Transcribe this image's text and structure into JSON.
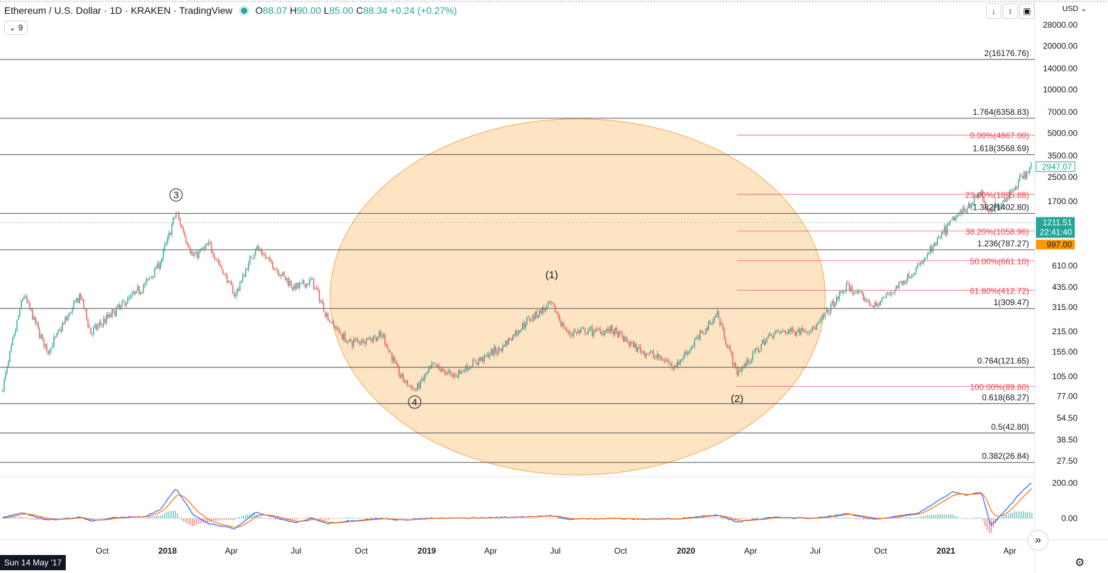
{
  "header": {
    "title": "Ethereum / U.S. Dollar · 1D · KRAKEN · TradingView",
    "o_label": "O",
    "o_value": "88.07",
    "h_label": "H",
    "h_value": "90.00",
    "l_label": "L",
    "l_value": "85.00",
    "c_label": "C",
    "c_value": "88.34",
    "change": "+0.24 (+0.27%)",
    "indicator_chip": "9",
    "currency": "USD"
  },
  "colors": {
    "up": "#26a69a",
    "down": "#ef5350",
    "fib": "#f23645",
    "circle_fill": "#fde4c1",
    "circle_stroke": "#f7a24a",
    "macd_line": "#2962ff",
    "signal_line": "#ff6d00"
  },
  "footer": {
    "date_tag": "Sun 14 May '17",
    "scroll_icon": "double-chevron-right-icon",
    "settings_icon": "gear-icon"
  },
  "chart_data": {
    "type": "candlestick",
    "scale": "log",
    "x_axis_ticks": [
      {
        "date": "2017-10-01",
        "label": "Oct",
        "bold": false
      },
      {
        "date": "2018-01-01",
        "label": "2018",
        "bold": true
      },
      {
        "date": "2018-04-01",
        "label": "Apr",
        "bold": false
      },
      {
        "date": "2018-07-01",
        "label": "Jul",
        "bold": false
      },
      {
        "date": "2018-10-01",
        "label": "Oct",
        "bold": false
      },
      {
        "date": "2019-01-01",
        "label": "2019",
        "bold": true
      },
      {
        "date": "2019-04-01",
        "label": "Apr",
        "bold": false
      },
      {
        "date": "2019-07-01",
        "label": "Jul",
        "bold": false
      },
      {
        "date": "2019-10-01",
        "label": "Oct",
        "bold": false
      },
      {
        "date": "2020-01-01",
        "label": "2020",
        "bold": true
      },
      {
        "date": "2020-04-01",
        "label": "Apr",
        "bold": false
      },
      {
        "date": "2020-07-01",
        "label": "Jul",
        "bold": false
      },
      {
        "date": "2020-10-01",
        "label": "Oct",
        "bold": false
      },
      {
        "date": "2021-01-01",
        "label": "2021",
        "bold": true
      },
      {
        "date": "2021-04-01",
        "label": "Apr",
        "bold": false
      }
    ],
    "y_axis_ticks": [
      "28000.00",
      "20000.00",
      "14000.00",
      "10000.00",
      "7000.00",
      "5000.00",
      "3500.00",
      "2500.00",
      "1700.00",
      "610.00",
      "435.00",
      "315.00",
      "215.00",
      "155.00",
      "105.00",
      "77.00",
      "54.50",
      "38.50",
      "27.50"
    ],
    "price_tags": [
      {
        "label": "2947.07",
        "price": 2947.07,
        "style": "outline"
      },
      {
        "label": "1211.51",
        "sub": "22:41:40",
        "price": 1211.51,
        "style": "current"
      },
      {
        "label": "997.00",
        "price": 997,
        "style": "orange"
      }
    ],
    "price_line": 1211.51,
    "fib_extensions": [
      {
        "label": "2(16176.76)",
        "price": 16176.76
      },
      {
        "label": "1.764(6358.83)",
        "price": 6358.83
      },
      {
        "label": "1.618(3568.69)",
        "price": 3568.69
      },
      {
        "label": "1.382(1402.80)",
        "price": 1402.8
      },
      {
        "label": "1.236(787.27)",
        "price": 787.27
      },
      {
        "label": "1(309.47)",
        "price": 309.47
      },
      {
        "label": "0.764(121.65)",
        "price": 121.65
      },
      {
        "label": "0.618(68.27)",
        "price": 68.27
      },
      {
        "label": "0.5(42.80)",
        "price": 42.8
      },
      {
        "label": "0.382(26.84)",
        "price": 26.84
      }
    ],
    "fib_retracements": {
      "x_start": "2020-03-13",
      "levels": [
        {
          "label": "0.00%(4867.00)",
          "price": 4867.0
        },
        {
          "label": "23.60%(1895.88)",
          "price": 1895.88
        },
        {
          "label": "38.20%(1058.96)",
          "price": 1058.96
        },
        {
          "label": "50.00%(661.10)",
          "price": 661.1
        },
        {
          "label": "61.80%(412.72)",
          "price": 412.72
        },
        {
          "label": "100.00%(89.80)",
          "price": 89.8
        }
      ]
    },
    "wave_labels": [
      {
        "label": "3",
        "circled": true,
        "date": "2018-01-13",
        "price": 1880
      },
      {
        "label": "(1)",
        "circled": false,
        "date": "2019-06-26",
        "price": 530
      },
      {
        "label": "4",
        "circled": true,
        "date": "2018-12-15",
        "price": 70
      },
      {
        "label": "(2)",
        "circled": false,
        "date": "2020-03-13",
        "price": 74
      }
    ],
    "circle_region": {
      "x_start": "2018-08-18",
      "x_end": "2020-07-15",
      "price_top": 6300,
      "price_bottom": 22
    },
    "ohlc_series": [
      {
        "date": "2017-05-14",
        "price": 88
      },
      {
        "date": "2017-06-12",
        "price": 390
      },
      {
        "date": "2017-07-16",
        "price": 155
      },
      {
        "date": "2017-08-31",
        "price": 385
      },
      {
        "date": "2017-09-15",
        "price": 210
      },
      {
        "date": "2017-10-20",
        "price": 300
      },
      {
        "date": "2017-11-30",
        "price": 450
      },
      {
        "date": "2017-12-22",
        "price": 650
      },
      {
        "date": "2018-01-13",
        "price": 1420
      },
      {
        "date": "2018-02-06",
        "price": 700
      },
      {
        "date": "2018-03-01",
        "price": 850
      },
      {
        "date": "2018-04-06",
        "price": 380
      },
      {
        "date": "2018-05-05",
        "price": 820
      },
      {
        "date": "2018-06-29",
        "price": 430
      },
      {
        "date": "2018-07-24",
        "price": 480
      },
      {
        "date": "2018-08-14",
        "price": 270
      },
      {
        "date": "2018-09-12",
        "price": 180
      },
      {
        "date": "2018-10-31",
        "price": 200
      },
      {
        "date": "2018-11-25",
        "price": 105
      },
      {
        "date": "2018-12-15",
        "price": 84
      },
      {
        "date": "2019-01-10",
        "price": 125
      },
      {
        "date": "2019-02-07",
        "price": 106
      },
      {
        "date": "2019-03-15",
        "price": 136
      },
      {
        "date": "2019-04-15",
        "price": 165
      },
      {
        "date": "2019-05-28",
        "price": 270
      },
      {
        "date": "2019-06-26",
        "price": 330
      },
      {
        "date": "2019-07-17",
        "price": 210
      },
      {
        "date": "2019-09-18",
        "price": 220
      },
      {
        "date": "2019-10-23",
        "price": 165
      },
      {
        "date": "2019-12-18",
        "price": 125
      },
      {
        "date": "2020-02-14",
        "price": 285
      },
      {
        "date": "2020-03-13",
        "price": 110
      },
      {
        "date": "2020-05-01",
        "price": 210
      },
      {
        "date": "2020-07-01",
        "price": 225
      },
      {
        "date": "2020-08-14",
        "price": 440
      },
      {
        "date": "2020-09-23",
        "price": 320
      },
      {
        "date": "2020-11-24",
        "price": 600
      },
      {
        "date": "2021-01-10",
        "price": 1250
      },
      {
        "date": "2021-02-20",
        "price": 1950
      },
      {
        "date": "2021-02-28",
        "price": 1400
      },
      {
        "date": "2021-03-23",
        "price": 1700
      },
      {
        "date": "2021-04-15",
        "price": 2400
      },
      {
        "date": "2021-05-01",
        "price": 2947
      }
    ],
    "macd_axis_ticks": [
      "200.00",
      "0.00"
    ],
    "macd_ylim": [
      -60,
      200
    ],
    "macd_series": [
      {
        "date": "2017-05-14",
        "value": 5
      },
      {
        "date": "2017-06-12",
        "value": 30
      },
      {
        "date": "2017-07-16",
        "value": -10
      },
      {
        "date": "2017-08-31",
        "value": 5
      },
      {
        "date": "2017-09-15",
        "value": -15
      },
      {
        "date": "2017-10-20",
        "value": 5
      },
      {
        "date": "2017-11-30",
        "value": 10
      },
      {
        "date": "2017-12-22",
        "value": 50
      },
      {
        "date": "2018-01-13",
        "value": 170
      },
      {
        "date": "2018-02-06",
        "value": 20
      },
      {
        "date": "2018-03-01",
        "value": -30
      },
      {
        "date": "2018-04-06",
        "value": -60
      },
      {
        "date": "2018-05-05",
        "value": 35
      },
      {
        "date": "2018-06-29",
        "value": -25
      },
      {
        "date": "2018-07-24",
        "value": 0
      },
      {
        "date": "2018-08-14",
        "value": -30
      },
      {
        "date": "2018-09-12",
        "value": -15
      },
      {
        "date": "2018-10-31",
        "value": 0
      },
      {
        "date": "2018-11-25",
        "value": -10
      },
      {
        "date": "2018-12-15",
        "value": -5
      },
      {
        "date": "2019-01-10",
        "value": 0
      },
      {
        "date": "2019-03-15",
        "value": 2
      },
      {
        "date": "2019-05-28",
        "value": 10
      },
      {
        "date": "2019-06-26",
        "value": 15
      },
      {
        "date": "2019-07-17",
        "value": -5
      },
      {
        "date": "2019-09-18",
        "value": 0
      },
      {
        "date": "2019-10-23",
        "value": -5
      },
      {
        "date": "2019-12-18",
        "value": -3
      },
      {
        "date": "2020-02-14",
        "value": 20
      },
      {
        "date": "2020-03-13",
        "value": -20
      },
      {
        "date": "2020-05-01",
        "value": 5
      },
      {
        "date": "2020-07-01",
        "value": 0
      },
      {
        "date": "2020-08-14",
        "value": 25
      },
      {
        "date": "2020-09-23",
        "value": -5
      },
      {
        "date": "2020-11-24",
        "value": 30
      },
      {
        "date": "2021-01-10",
        "value": 150
      },
      {
        "date": "2021-02-01",
        "value": 130
      },
      {
        "date": "2021-02-20",
        "value": 150
      },
      {
        "date": "2021-03-05",
        "value": -40
      },
      {
        "date": "2021-03-23",
        "value": 30
      },
      {
        "date": "2021-04-15",
        "value": 140
      },
      {
        "date": "2021-05-01",
        "value": 200
      }
    ]
  }
}
